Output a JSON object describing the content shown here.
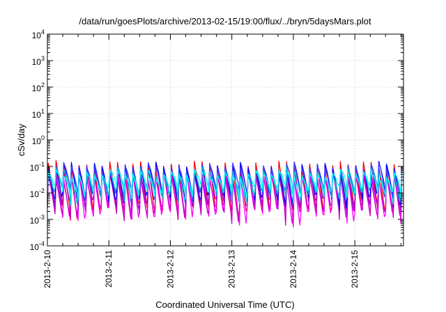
{
  "chart_data": {
    "type": "line",
    "title": "/data/run/goesPlots/archive/2013-02-15/19:00/flux/../bryn/5daysMars.plot",
    "xlabel": "Coordinated Universal Time (UTC)",
    "ylabel": "cSv/day",
    "y_scale": "log",
    "ylim": [
      0.0001,
      10000
    ],
    "y_ticks": [
      {
        "base": "10",
        "exp": "-4",
        "value": 0.0001
      },
      {
        "base": "10",
        "exp": "-3",
        "value": 0.001
      },
      {
        "base": "10",
        "exp": "-2",
        "value": 0.01
      },
      {
        "base": "10",
        "exp": "-1",
        "value": 0.1
      },
      {
        "base": "10",
        "exp": "0",
        "value": 1
      },
      {
        "base": "10",
        "exp": "1",
        "value": 10
      },
      {
        "base": "10",
        "exp": "2",
        "value": 100
      },
      {
        "base": "10",
        "exp": "3",
        "value": 1000
      },
      {
        "base": "10",
        "exp": "4",
        "value": 10000
      }
    ],
    "x_ticks": [
      "2013-2-10",
      "2013-2-11",
      "2013-2-12",
      "2013-2-13",
      "2013-2-14",
      "2013-2-15"
    ],
    "xlim": [
      "2013-02-10T00:00",
      "2013-02-15T19:00"
    ],
    "grid": true,
    "legend": "none",
    "cycles_per_day": 8,
    "series": [
      {
        "color": "#ff0000",
        "peak": 0.11,
        "trough": 0.003
      },
      {
        "color": "#ff00ff",
        "peak": 0.05,
        "trough": 0.0018
      },
      {
        "color": "#cc00cc",
        "peak": 0.04,
        "trough": 0.0022
      },
      {
        "color": "#9900cc",
        "peak": 0.075,
        "trough": 0.005
      },
      {
        "color": "#0000ff",
        "peak": 0.1,
        "trough": 0.008
      },
      {
        "color": "#4040ff",
        "peak": 0.09,
        "trough": 0.012
      },
      {
        "color": "#00cccc",
        "peak": 0.06,
        "trough": 0.01
      },
      {
        "color": "#00ffff",
        "peak": 0.05,
        "trough": 0.014
      }
    ]
  }
}
